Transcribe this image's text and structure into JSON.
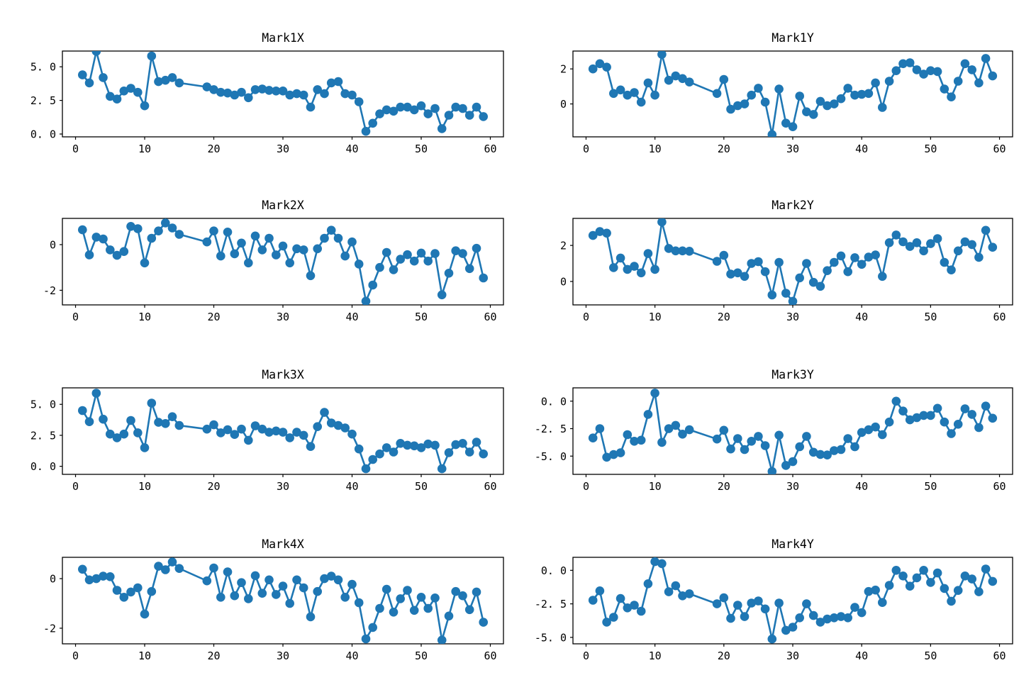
{
  "figure": {
    "background": "#ffffff",
    "series_color": "#1f77b4",
    "axis_color": "#000000",
    "grid": "off",
    "legend": "none",
    "marker_style": "circle",
    "rows": 4,
    "cols": 2
  },
  "chart_data": [
    {
      "type": "line",
      "title": "Mark1X",
      "row": 0,
      "col": 0,
      "xlabel": "",
      "ylabel": "",
      "xlim": [
        -1.9,
        61.9
      ],
      "ylim": [
        -0.21,
        6.17
      ],
      "xticks": [
        0,
        10,
        20,
        30,
        40,
        50,
        60
      ],
      "yticks": [
        {
          "v": 0,
          "label": "0. 0"
        },
        {
          "v": 2.5,
          "label": "2. 5"
        },
        {
          "v": 5,
          "label": "5. 0"
        }
      ],
      "x": [
        1,
        2,
        3,
        4,
        5,
        6,
        7,
        8,
        9,
        10,
        11,
        12,
        13,
        14,
        15,
        19,
        20,
        21,
        22,
        23,
        24,
        25,
        26,
        27,
        28,
        29,
        30,
        31,
        32,
        33,
        34,
        35,
        36,
        37,
        38,
        39,
        40,
        41,
        42,
        43,
        44,
        45,
        46,
        47,
        48,
        49,
        50,
        51,
        52,
        53,
        54,
        55,
        56,
        57,
        58,
        59
      ],
      "y": [
        4.4,
        3.8,
        6.15,
        4.2,
        2.8,
        2.6,
        3.2,
        3.4,
        3.1,
        2.1,
        5.8,
        3.9,
        4.0,
        4.2,
        3.8,
        3.5,
        3.3,
        3.1,
        3.05,
        2.9,
        3.1,
        2.7,
        3.3,
        3.35,
        3.25,
        3.2,
        3.2,
        2.9,
        3.0,
        2.9,
        2.0,
        3.3,
        3.0,
        3.8,
        3.9,
        3.0,
        2.9,
        2.4,
        0.2,
        0.8,
        1.5,
        1.8,
        1.7,
        2.0,
        2.0,
        1.8,
        2.1,
        1.5,
        1.9,
        0.4,
        1.4,
        2.0,
        1.9,
        1.4,
        2.0,
        1.3
      ]
    },
    {
      "type": "line",
      "title": "Mark1Y",
      "row": 0,
      "col": 1,
      "xlabel": "",
      "ylabel": "",
      "xlim": [
        -1.9,
        61.9
      ],
      "ylim": [
        -1.88,
        3.02
      ],
      "xticks": [
        0,
        10,
        20,
        30,
        40,
        50,
        60
      ],
      "yticks": [
        {
          "v": 0,
          "label": "0"
        },
        {
          "v": 2,
          "label": "2"
        }
      ],
      "x": [
        1,
        2,
        3,
        4,
        5,
        6,
        7,
        8,
        9,
        10,
        11,
        12,
        13,
        14,
        15,
        19,
        20,
        21,
        22,
        23,
        24,
        25,
        26,
        27,
        28,
        29,
        30,
        31,
        32,
        33,
        34,
        35,
        36,
        37,
        38,
        39,
        40,
        41,
        42,
        43,
        44,
        45,
        46,
        47,
        48,
        49,
        50,
        51,
        52,
        53,
        54,
        55,
        56,
        57,
        58,
        59
      ],
      "y": [
        2.0,
        2.3,
        2.1,
        0.6,
        0.8,
        0.5,
        0.65,
        0.1,
        1.2,
        0.5,
        2.83,
        1.35,
        1.6,
        1.45,
        1.25,
        0.6,
        1.4,
        -0.3,
        -0.1,
        0.0,
        0.5,
        0.9,
        0.1,
        -1.75,
        0.85,
        -1.1,
        -1.3,
        0.45,
        -0.45,
        -0.6,
        0.15,
        -0.1,
        0.0,
        0.3,
        0.9,
        0.5,
        0.55,
        0.6,
        1.2,
        -0.2,
        1.3,
        1.9,
        2.3,
        2.35,
        1.95,
        1.7,
        1.9,
        1.85,
        0.85,
        0.4,
        1.3,
        2.3,
        1.95,
        1.2,
        2.6,
        1.6
      ]
    },
    {
      "type": "line",
      "title": "Mark2X",
      "row": 1,
      "col": 0,
      "xlabel": "",
      "ylabel": "",
      "xlim": [
        -1.9,
        61.9
      ],
      "ylim": [
        -2.64,
        1.15
      ],
      "xticks": [
        0,
        10,
        20,
        30,
        40,
        50,
        60
      ],
      "yticks": [
        {
          "v": -2,
          "label": "-2"
        },
        {
          "v": 0,
          "label": "0"
        }
      ],
      "x": [
        1,
        2,
        3,
        4,
        5,
        6,
        7,
        8,
        9,
        10,
        11,
        12,
        13,
        14,
        15,
        19,
        20,
        21,
        22,
        23,
        24,
        25,
        26,
        27,
        28,
        29,
        30,
        31,
        32,
        33,
        34,
        35,
        36,
        37,
        38,
        39,
        40,
        41,
        42,
        43,
        44,
        45,
        46,
        47,
        48,
        49,
        50,
        51,
        52,
        53,
        54,
        55,
        56,
        57,
        58,
        59
      ],
      "y": [
        0.65,
        -0.45,
        0.33,
        0.25,
        -0.23,
        -0.47,
        -0.3,
        0.8,
        0.7,
        -0.8,
        0.28,
        0.6,
        0.95,
        0.73,
        0.45,
        0.12,
        0.6,
        -0.5,
        0.55,
        -0.4,
        0.07,
        -0.8,
        0.38,
        -0.23,
        0.28,
        -0.45,
        -0.06,
        -0.8,
        -0.18,
        -0.23,
        -1.36,
        -0.18,
        0.28,
        0.63,
        0.28,
        -0.5,
        0.12,
        -0.85,
        -2.48,
        -1.77,
        -1.0,
        -0.34,
        -1.1,
        -0.64,
        -0.44,
        -0.72,
        -0.37,
        -0.72,
        -0.39,
        -2.2,
        -1.25,
        -0.27,
        -0.39,
        -1.05,
        -0.16,
        -1.46
      ]
    },
    {
      "type": "line",
      "title": "Mark2Y",
      "row": 1,
      "col": 1,
      "xlabel": "",
      "ylabel": "",
      "xlim": [
        -1.9,
        61.9
      ],
      "ylim": [
        -1.3,
        3.5
      ],
      "xticks": [
        0,
        10,
        20,
        30,
        40,
        50,
        60
      ],
      "yticks": [
        {
          "v": 0,
          "label": "0"
        },
        {
          "v": 2,
          "label": "2"
        }
      ],
      "x": [
        1,
        2,
        3,
        4,
        5,
        6,
        7,
        8,
        9,
        10,
        11,
        12,
        13,
        14,
        15,
        19,
        20,
        21,
        22,
        23,
        24,
        25,
        26,
        27,
        28,
        29,
        30,
        31,
        32,
        33,
        34,
        35,
        36,
        37,
        38,
        39,
        40,
        41,
        42,
        43,
        44,
        45,
        46,
        47,
        48,
        49,
        50,
        51,
        52,
        53,
        54,
        55,
        56,
        57,
        58,
        59
      ],
      "y": [
        2.55,
        2.77,
        2.68,
        0.77,
        1.3,
        0.67,
        0.84,
        0.48,
        1.55,
        0.67,
        3.3,
        1.83,
        1.7,
        1.7,
        1.68,
        1.12,
        1.45,
        0.41,
        0.48,
        0.28,
        1.0,
        1.1,
        0.54,
        -0.75,
        1.06,
        -0.65,
        -1.1,
        0.2,
        1.0,
        -0.05,
        -0.27,
        0.6,
        1.06,
        1.42,
        0.54,
        1.32,
        0.95,
        1.35,
        1.47,
        0.28,
        2.15,
        2.58,
        2.2,
        1.94,
        2.15,
        1.7,
        2.1,
        2.38,
        1.06,
        0.64,
        1.7,
        2.2,
        2.05,
        1.34,
        2.84,
        1.9
      ]
    },
    {
      "type": "line",
      "title": "Mark3X",
      "row": 2,
      "col": 0,
      "xlabel": "",
      "ylabel": "",
      "xlim": [
        -1.9,
        61.9
      ],
      "ylim": [
        -0.65,
        6.33
      ],
      "xticks": [
        0,
        10,
        20,
        30,
        40,
        50,
        60
      ],
      "yticks": [
        {
          "v": 0,
          "label": "0. 0"
        },
        {
          "v": 2.5,
          "label": "2. 5"
        },
        {
          "v": 5,
          "label": "5. 0"
        }
      ],
      "x": [
        1,
        2,
        3,
        4,
        5,
        6,
        7,
        8,
        9,
        10,
        11,
        12,
        13,
        14,
        15,
        19,
        20,
        21,
        22,
        23,
        24,
        25,
        26,
        27,
        28,
        29,
        30,
        31,
        32,
        33,
        34,
        35,
        36,
        37,
        38,
        39,
        40,
        41,
        42,
        43,
        44,
        45,
        46,
        47,
        48,
        49,
        50,
        51,
        52,
        53,
        54,
        55,
        56,
        57,
        58,
        59
      ],
      "y": [
        4.5,
        3.6,
        5.9,
        3.8,
        2.6,
        2.3,
        2.6,
        3.7,
        2.7,
        1.5,
        5.1,
        3.55,
        3.45,
        4.0,
        3.3,
        3.0,
        3.35,
        2.7,
        2.95,
        2.57,
        3.0,
        2.1,
        3.27,
        3.0,
        2.75,
        2.85,
        2.75,
        2.3,
        2.75,
        2.5,
        1.6,
        3.2,
        4.35,
        3.5,
        3.3,
        3.1,
        2.6,
        1.4,
        -0.2,
        0.55,
        1.0,
        1.5,
        1.15,
        1.85,
        1.7,
        1.65,
        1.5,
        1.8,
        1.7,
        -0.2,
        1.1,
        1.75,
        1.85,
        1.15,
        1.95,
        1.0
      ]
    },
    {
      "type": "line",
      "title": "Mark3Y",
      "row": 2,
      "col": 1,
      "xlabel": "",
      "ylabel": "",
      "xlim": [
        -1.9,
        61.9
      ],
      "ylim": [
        -6.66,
        1.21
      ],
      "xticks": [
        0,
        10,
        20,
        30,
        40,
        50,
        60
      ],
      "yticks": [
        {
          "v": -5,
          "label": "-5. 0"
        },
        {
          "v": -2.5,
          "label": "-2. 5"
        },
        {
          "v": 0,
          "label": "0. 0"
        }
      ],
      "x": [
        1,
        2,
        3,
        4,
        5,
        6,
        7,
        8,
        9,
        10,
        11,
        12,
        13,
        14,
        15,
        19,
        20,
        21,
        22,
        23,
        24,
        25,
        26,
        27,
        28,
        29,
        30,
        31,
        32,
        33,
        34,
        35,
        36,
        37,
        38,
        39,
        40,
        41,
        42,
        43,
        44,
        45,
        46,
        47,
        48,
        49,
        50,
        51,
        52,
        53,
        54,
        55,
        56,
        57,
        58,
        59
      ],
      "y": [
        -3.35,
        -2.5,
        -5.1,
        -4.86,
        -4.7,
        -3.05,
        -3.65,
        -3.55,
        -1.2,
        0.73,
        -3.75,
        -2.5,
        -2.2,
        -3.0,
        -2.6,
        -3.45,
        -2.65,
        -4.35,
        -3.4,
        -4.4,
        -3.65,
        -3.2,
        -4.05,
        -6.4,
        -3.1,
        -5.85,
        -5.5,
        -4.15,
        -3.2,
        -4.65,
        -4.85,
        -4.9,
        -4.5,
        -4.4,
        -3.4,
        -4.15,
        -2.85,
        -2.6,
        -2.35,
        -3.05,
        -1.9,
        0.0,
        -0.9,
        -1.7,
        -1.5,
        -1.3,
        -1.3,
        -0.65,
        -1.9,
        -2.95,
        -2.1,
        -0.7,
        -1.2,
        -2.4,
        -0.45,
        -1.55
      ]
    },
    {
      "type": "line",
      "title": "Mark4X",
      "row": 3,
      "col": 0,
      "xlabel": "",
      "ylabel": "",
      "xlim": [
        -1.9,
        61.9
      ],
      "ylim": [
        -2.63,
        0.86
      ],
      "xticks": [
        0,
        10,
        20,
        30,
        40,
        50,
        60
      ],
      "yticks": [
        {
          "v": -2,
          "label": "-2"
        },
        {
          "v": 0,
          "label": "0"
        }
      ],
      "x": [
        1,
        2,
        3,
        4,
        5,
        6,
        7,
        8,
        9,
        10,
        11,
        12,
        13,
        14,
        15,
        19,
        20,
        21,
        22,
        23,
        24,
        25,
        26,
        27,
        28,
        29,
        30,
        31,
        32,
        33,
        34,
        35,
        36,
        37,
        38,
        39,
        40,
        41,
        42,
        43,
        44,
        45,
        46,
        47,
        48,
        49,
        50,
        51,
        52,
        53,
        54,
        55,
        56,
        57,
        58,
        59
      ],
      "y": [
        0.38,
        -0.05,
        0.0,
        0.1,
        0.08,
        -0.47,
        -0.75,
        -0.54,
        -0.37,
        -1.43,
        -0.52,
        0.5,
        0.36,
        0.67,
        0.41,
        -0.09,
        0.43,
        -0.75,
        0.27,
        -0.69,
        -0.16,
        -0.81,
        0.12,
        -0.59,
        -0.05,
        -0.64,
        -0.3,
        -1.0,
        -0.05,
        -0.37,
        -1.54,
        -0.52,
        0.0,
        0.1,
        -0.05,
        -0.75,
        -0.23,
        -0.97,
        -2.43,
        -1.97,
        -1.2,
        -0.43,
        -1.35,
        -0.81,
        -0.47,
        -1.28,
        -0.75,
        -1.2,
        -0.78,
        -2.48,
        -1.51,
        -0.52,
        -0.69,
        -1.25,
        -0.54,
        -1.76
      ]
    },
    {
      "type": "line",
      "title": "Mark4Y",
      "row": 3,
      "col": 1,
      "xlabel": "",
      "ylabel": "",
      "xlim": [
        -1.9,
        61.9
      ],
      "ylim": [
        -5.48,
        0.97
      ],
      "xticks": [
        0,
        10,
        20,
        30,
        40,
        50,
        60
      ],
      "yticks": [
        {
          "v": -5,
          "label": "-5. 0"
        },
        {
          "v": -2.5,
          "label": "-2. 5"
        },
        {
          "v": 0,
          "label": "0. 0"
        }
      ],
      "x": [
        1,
        2,
        3,
        4,
        5,
        6,
        7,
        8,
        9,
        10,
        11,
        12,
        13,
        14,
        15,
        19,
        20,
        21,
        22,
        23,
        24,
        25,
        26,
        27,
        28,
        29,
        30,
        31,
        32,
        33,
        34,
        35,
        36,
        37,
        38,
        39,
        40,
        41,
        42,
        43,
        44,
        45,
        46,
        47,
        48,
        49,
        50,
        51,
        52,
        53,
        54,
        55,
        56,
        57,
        58,
        59
      ],
      "y": [
        -2.23,
        -1.53,
        -3.86,
        -3.5,
        -2.1,
        -2.8,
        -2.6,
        -3.05,
        -1.0,
        0.65,
        0.5,
        -1.6,
        -1.15,
        -1.9,
        -1.75,
        -2.5,
        -2.05,
        -3.58,
        -2.6,
        -3.45,
        -2.44,
        -2.28,
        -2.88,
        -5.12,
        -2.44,
        -4.47,
        -4.24,
        -3.54,
        -2.5,
        -3.37,
        -3.86,
        -3.63,
        -3.54,
        -3.45,
        -3.54,
        -2.76,
        -3.16,
        -1.58,
        -1.47,
        -2.4,
        -1.12,
        0.0,
        -0.42,
        -1.18,
        -0.56,
        0.0,
        -0.9,
        -0.2,
        -1.35,
        -2.3,
        -1.5,
        -0.42,
        -0.65,
        -1.6,
        0.1,
        -0.82
      ]
    }
  ]
}
